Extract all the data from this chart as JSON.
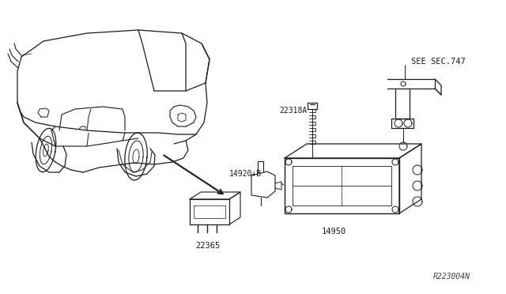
{
  "bg_color": "#ffffff",
  "line_color": "#1a1a1a",
  "fig_width": 6.4,
  "fig_height": 3.72,
  "dpi": 100,
  "labels": {
    "part1": "22365",
    "part2": "14920+B",
    "part3": "22318A",
    "part4": "14950",
    "part5": "SEE SEC.747",
    "ref": "R223004N"
  }
}
